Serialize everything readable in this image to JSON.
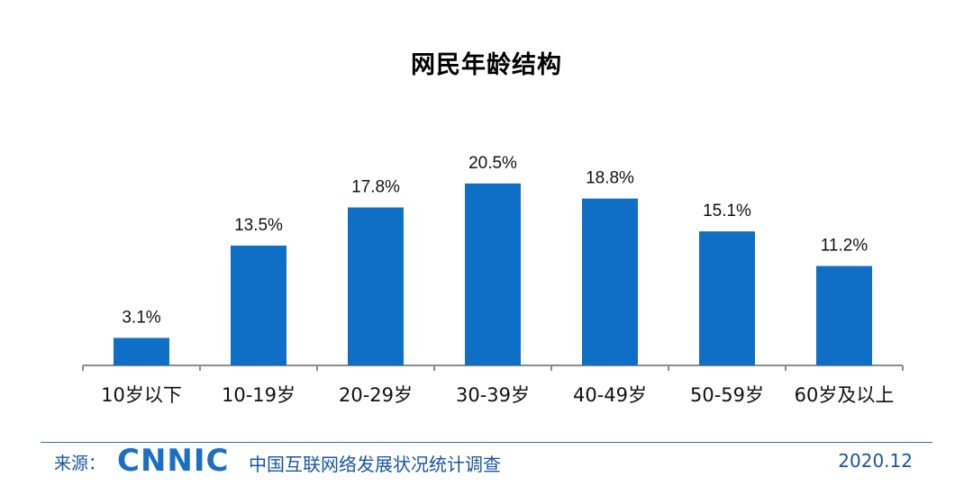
{
  "chart_data": {
    "type": "bar",
    "title": "网民年龄结构",
    "categories": [
      "10岁以下",
      "10-19岁",
      "20-29岁",
      "30-39岁",
      "40-49岁",
      "50-59岁",
      "60岁及以上"
    ],
    "values": [
      3.1,
      13.5,
      17.8,
      20.5,
      18.8,
      15.1,
      11.2
    ],
    "data_labels": [
      "3.1%",
      "13.5%",
      "17.8%",
      "20.5%",
      "18.8%",
      "15.1%",
      "11.2%"
    ],
    "xlabel": "",
    "ylabel": "",
    "ylim": [
      0,
      21.5
    ],
    "grid": false,
    "bar_color": "#0f6fc6"
  },
  "footer": {
    "source_label": "来源：",
    "logo_text": "CNNIC",
    "org_name": "中国互联网络发展状况统计调查",
    "date": "2020.12"
  },
  "colors": {
    "footer_text": "#1a55a3",
    "logo": "#1a6fc4"
  }
}
